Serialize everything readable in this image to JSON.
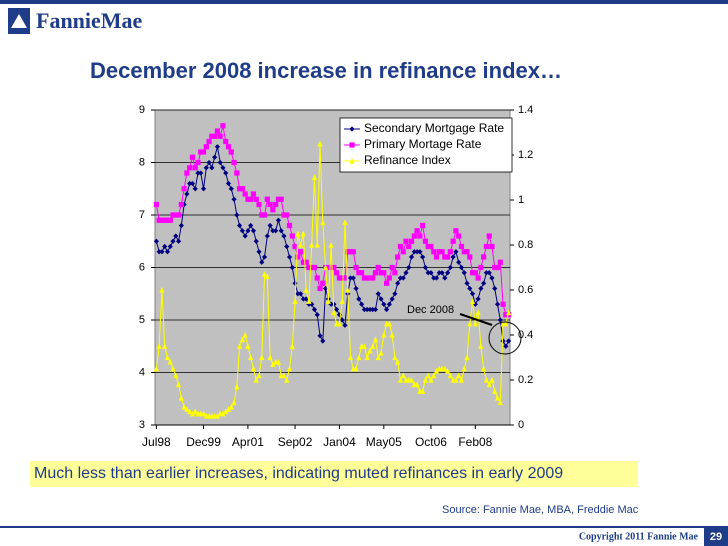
{
  "header": {
    "logo": "FannieMae",
    "title": "December 2008 increase in refinance index…"
  },
  "chart_data": {
    "type": "line",
    "categories": [
      "Jul98",
      null,
      null,
      null,
      null,
      null,
      null,
      null,
      null,
      null,
      null,
      null,
      null,
      null,
      null,
      null,
      null,
      "Dec99",
      null,
      null,
      null,
      null,
      null,
      null,
      null,
      null,
      null,
      null,
      null,
      null,
      null,
      null,
      null,
      "Apr01",
      null,
      null,
      null,
      null,
      null,
      null,
      null,
      null,
      null,
      null,
      null,
      null,
      null,
      null,
      null,
      null,
      "Sep02",
      null,
      null,
      null,
      null,
      null,
      null,
      null,
      null,
      null,
      null,
      null,
      null,
      null,
      null,
      null,
      "Jan04",
      null,
      null,
      null,
      null,
      null,
      null,
      null,
      null,
      null,
      null,
      null,
      null,
      null,
      null,
      null,
      "May05",
      null,
      null,
      null,
      null,
      null,
      null,
      null,
      null,
      null,
      null,
      null,
      null,
      null,
      null,
      null,
      null,
      "Oct06",
      null,
      null,
      null,
      null,
      null,
      null,
      null,
      null,
      null,
      null,
      null,
      null,
      null,
      null,
      null,
      "Feb08",
      null,
      null,
      null,
      null,
      null,
      null,
      null,
      null,
      null,
      null,
      null,
      null
    ],
    "ylim": [
      3,
      9
    ],
    "yticks": [
      3,
      4,
      5,
      6,
      7,
      8,
      9
    ],
    "y2lim": [
      0,
      1.4
    ],
    "y2ticks": [
      0,
      0.2,
      0.4,
      0.6,
      0.8,
      1,
      1.2,
      1.4
    ],
    "grid": true,
    "legend": "upper right",
    "series": [
      {
        "name": "Secondary Mortgage Rate",
        "color": "#000080",
        "marker": "diamond",
        "values": [
          6.5,
          6.3,
          6.3,
          6.4,
          6.3,
          6.4,
          6.5,
          6.6,
          6.5,
          6.8,
          7.2,
          7.4,
          7.6,
          7.6,
          7.5,
          7.8,
          7.8,
          7.5,
          7.9,
          8.0,
          7.9,
          8.1,
          8.3,
          8.0,
          7.9,
          7.8,
          7.6,
          7.5,
          7.3,
          7.0,
          6.8,
          6.7,
          6.6,
          6.7,
          6.8,
          6.7,
          6.5,
          6.3,
          6.1,
          6.2,
          6.6,
          6.8,
          6.7,
          6.7,
          6.9,
          6.7,
          6.6,
          6.4,
          6.2,
          6.0,
          5.7,
          5.5,
          5.5,
          5.4,
          5.4,
          5.3,
          5.3,
          5.2,
          5.1,
          4.7,
          4.6,
          5.6,
          5.4,
          5.3,
          5.3,
          5.2,
          5.1,
          5.0,
          4.9,
          5.5,
          5.8,
          5.8,
          5.6,
          5.4,
          5.3,
          5.2,
          5.2,
          5.2,
          5.2,
          5.2,
          5.5,
          5.4,
          5.3,
          5.2,
          5.3,
          5.4,
          5.5,
          5.7,
          5.8,
          5.8,
          5.9,
          6.0,
          6.2,
          6.3,
          6.3,
          6.3,
          6.2,
          6.0,
          5.9,
          5.9,
          5.8,
          5.8,
          5.9,
          5.9,
          5.8,
          5.9,
          6.0,
          6.2,
          6.3,
          6.1,
          6.0,
          5.9,
          5.7,
          5.6,
          5.5,
          5.3,
          5.4,
          5.6,
          5.7,
          5.9,
          5.9,
          5.8,
          5.6,
          5.3,
          5.0,
          4.6,
          4.5,
          4.6
        ]
      },
      {
        "name": "Primary Mortage Rate",
        "color": "#ff00ff",
        "marker": "square",
        "values": [
          7.2,
          6.9,
          6.9,
          6.9,
          6.9,
          6.9,
          7.0,
          7.0,
          7.0,
          7.2,
          7.5,
          7.8,
          7.9,
          8.1,
          7.9,
          8.0,
          8.2,
          8.2,
          8.3,
          8.4,
          8.5,
          8.5,
          8.6,
          8.5,
          8.7,
          8.4,
          8.3,
          8.2,
          8.0,
          7.8,
          7.5,
          7.5,
          7.4,
          7.3,
          7.3,
          7.4,
          7.3,
          7.2,
          7.0,
          7.0,
          7.3,
          7.2,
          7.1,
          7.2,
          7.3,
          7.3,
          7.0,
          7.0,
          6.8,
          6.6,
          6.4,
          6.2,
          6.3,
          6.1,
          6.1,
          6.0,
          6.0,
          6.0,
          5.8,
          5.6,
          5.7,
          6.0,
          6.0,
          6.0,
          6.0,
          5.9,
          5.8,
          5.8,
          5.8,
          6.3,
          6.3,
          6.3,
          6.0,
          5.9,
          5.9,
          5.8,
          5.8,
          5.8,
          5.8,
          5.9,
          6.0,
          5.9,
          5.9,
          5.7,
          5.8,
          6.0,
          5.9,
          6.2,
          6.4,
          6.3,
          6.5,
          6.4,
          6.5,
          6.6,
          6.7,
          6.6,
          6.8,
          6.5,
          6.4,
          6.4,
          6.3,
          6.2,
          6.3,
          6.3,
          6.2,
          6.2,
          6.3,
          6.5,
          6.7,
          6.6,
          6.4,
          6.3,
          6.3,
          6.2,
          5.9,
          5.9,
          5.8,
          6.0,
          6.2,
          6.4,
          6.6,
          6.4,
          6.0,
          6.0,
          6.1,
          5.3,
          5.1,
          5.1
        ]
      },
      {
        "name": "Refinance Index",
        "color": "#ffff00",
        "marker": "triangle",
        "axis": "y2",
        "values": [
          0.25,
          0.35,
          0.6,
          0.35,
          0.3,
          0.28,
          0.25,
          0.22,
          0.18,
          0.12,
          0.08,
          0.07,
          0.06,
          0.05,
          0.06,
          0.05,
          0.05,
          0.05,
          0.04,
          0.04,
          0.04,
          0.04,
          0.04,
          0.05,
          0.05,
          0.06,
          0.07,
          0.08,
          0.1,
          0.17,
          0.35,
          0.38,
          0.4,
          0.35,
          0.3,
          0.25,
          0.2,
          0.22,
          0.3,
          0.67,
          0.66,
          0.3,
          0.27,
          0.28,
          0.28,
          0.22,
          0.22,
          0.2,
          0.25,
          0.35,
          0.55,
          0.85,
          0.8,
          0.85,
          0.6,
          0.55,
          0.8,
          1.1,
          0.8,
          1.25,
          0.9,
          0.7,
          0.55,
          0.8,
          0.5,
          0.45,
          0.45,
          0.55,
          0.9,
          0.6,
          0.3,
          0.25,
          0.25,
          0.3,
          0.35,
          0.35,
          0.3,
          0.33,
          0.35,
          0.38,
          0.3,
          0.32,
          0.4,
          0.45,
          0.45,
          0.4,
          0.3,
          0.28,
          0.2,
          0.22,
          0.2,
          0.2,
          0.2,
          0.18,
          0.18,
          0.15,
          0.15,
          0.2,
          0.22,
          0.2,
          0.22,
          0.24,
          0.25,
          0.25,
          0.25,
          0.24,
          0.22,
          0.2,
          0.2,
          0.22,
          0.2,
          0.25,
          0.3,
          0.45,
          0.55,
          0.45,
          0.5,
          0.35,
          0.25,
          0.2,
          0.18,
          0.2,
          0.15,
          0.12,
          0.1,
          0.45,
          0.45,
          0.5
        ]
      }
    ],
    "annotation": "Dec 2008"
  },
  "footer": {
    "note": "Much less than earlier increases, indicating muted refinances in early 2009",
    "source": "Source: Fannie Mae, MBA, Freddie Mac",
    "copyright": "Copyright 2011 Fannie Mae",
    "page": "29"
  }
}
